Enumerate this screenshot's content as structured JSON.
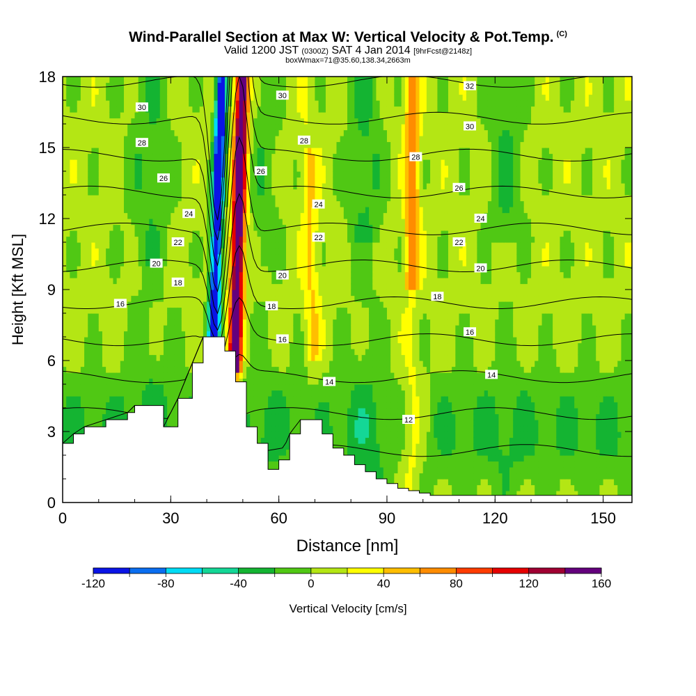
{
  "title": {
    "main": "Wind-Parallel Section at Max W: Vertical Velocity & Pot.Temp.",
    "copyright": "(C)",
    "valid_prefix": "Valid 1200 JST",
    "valid_utc": "(0300Z)",
    "valid_date": "SAT 4 Jan 2014",
    "forecast": "[9hrFcst@2148z]",
    "boxwmax": "boxWmax=71@35.60,138.34,2663m"
  },
  "colors": {
    "levels": [
      "#0a14e6",
      "#0a6ef0",
      "#00dcf5",
      "#14d796",
      "#14b432",
      "#50c814",
      "#b4e614",
      "#ffff00",
      "#ffbe00",
      "#ff8c00",
      "#ff3c00",
      "#e60000",
      "#a00032",
      "#64007d"
    ],
    "contour": "#000000",
    "terrain": "#ffffff"
  },
  "chart_data": {
    "type": "heatmap",
    "xlabel": "Distance [nm]",
    "ylabel": "Height [Kft MSL]",
    "xlim": [
      0,
      158
    ],
    "ylim": [
      0,
      18
    ],
    "xticks": [
      "0",
      "30",
      "60",
      "90",
      "120",
      "150"
    ],
    "yticks": [
      "0",
      "3",
      "6",
      "9",
      "12",
      "15",
      "18"
    ],
    "colorbar": {
      "label": "Vertical Velocity [cm/s]",
      "levels": [
        -120,
        -100,
        -80,
        -60,
        -40,
        -20,
        0,
        20,
        40,
        60,
        80,
        100,
        120,
        140,
        160
      ],
      "tick_labels": [
        "-120",
        "-80",
        "-40",
        "0",
        "40",
        "80",
        "120",
        "160"
      ]
    },
    "vertical_velocity_bands": [
      {
        "x_range": [
          41,
          44
        ],
        "value": -120
      },
      {
        "x_range": [
          44,
          46
        ],
        "value": -60
      },
      {
        "x_range": [
          47,
          50
        ],
        "value": 130
      },
      {
        "x_range": [
          50,
          52
        ],
        "value": 60
      },
      {
        "x_range": [
          66,
          71
        ],
        "value": 30
      },
      {
        "x_range": [
          94,
          100
        ],
        "value": 60
      }
    ],
    "terrain_profile": {
      "x": [
        0,
        3,
        6,
        12,
        18,
        20,
        24,
        28,
        32,
        36,
        39,
        42,
        45,
        48,
        51,
        54,
        57,
        60,
        63,
        66,
        69,
        72,
        75,
        78,
        81,
        84,
        87,
        90,
        93,
        96,
        99,
        102,
        105,
        158
      ],
      "height": [
        2.5,
        2.9,
        3.2,
        3.5,
        3.8,
        4.1,
        4.1,
        3.2,
        4.4,
        5.9,
        7.0,
        7.0,
        6.4,
        5.1,
        3.2,
        2.5,
        1.4,
        1.8,
        2.9,
        3.5,
        3.5,
        2.9,
        2.3,
        2.0,
        1.6,
        1.3,
        1.0,
        0.8,
        0.6,
        0.5,
        0.4,
        0.3,
        0.3,
        0.3
      ]
    },
    "theta_contours": [
      {
        "value": 12,
        "label": "12"
      },
      {
        "value": 14,
        "label": "14"
      },
      {
        "value": 16,
        "label": "16"
      },
      {
        "value": 18,
        "label": "18"
      },
      {
        "value": 20,
        "label": "20"
      },
      {
        "value": 22,
        "label": "22"
      },
      {
        "value": 24,
        "label": "24"
      },
      {
        "value": 26,
        "label": "26"
      },
      {
        "value": 28,
        "label": "28"
      },
      {
        "value": 30,
        "label": "30"
      },
      {
        "value": 32,
        "label": "32"
      }
    ],
    "contour_labels": [
      {
        "text": "30",
        "x": 22,
        "y": 16.7
      },
      {
        "text": "28",
        "x": 22,
        "y": 15.2
      },
      {
        "text": "26",
        "x": 28,
        "y": 13.7
      },
      {
        "text": "24",
        "x": 35,
        "y": 12.2
      },
      {
        "text": "22",
        "x": 32,
        "y": 11.0
      },
      {
        "text": "20",
        "x": 26,
        "y": 10.1
      },
      {
        "text": "18",
        "x": 32,
        "y": 9.3
      },
      {
        "text": "16",
        "x": 16,
        "y": 8.4
      },
      {
        "text": "30",
        "x": 61,
        "y": 17.2
      },
      {
        "text": "28",
        "x": 67,
        "y": 15.3
      },
      {
        "text": "26",
        "x": 55,
        "y": 14.0
      },
      {
        "text": "24",
        "x": 71,
        "y": 12.6
      },
      {
        "text": "22",
        "x": 71,
        "y": 11.2
      },
      {
        "text": "20",
        "x": 61,
        "y": 9.6
      },
      {
        "text": "18",
        "x": 58,
        "y": 8.3
      },
      {
        "text": "16",
        "x": 61,
        "y": 6.9
      },
      {
        "text": "14",
        "x": 74,
        "y": 5.1
      },
      {
        "text": "12",
        "x": 96,
        "y": 3.5
      },
      {
        "text": "32",
        "x": 113,
        "y": 17.6
      },
      {
        "text": "30",
        "x": 113,
        "y": 15.9
      },
      {
        "text": "28",
        "x": 98,
        "y": 14.6
      },
      {
        "text": "26",
        "x": 110,
        "y": 13.3
      },
      {
        "text": "24",
        "x": 116,
        "y": 12.0
      },
      {
        "text": "22",
        "x": 110,
        "y": 11.0
      },
      {
        "text": "20",
        "x": 116,
        "y": 9.9
      },
      {
        "text": "18",
        "x": 104,
        "y": 8.7
      },
      {
        "text": "16",
        "x": 113,
        "y": 7.2
      },
      {
        "text": "14",
        "x": 119,
        "y": 5.4
      }
    ]
  }
}
